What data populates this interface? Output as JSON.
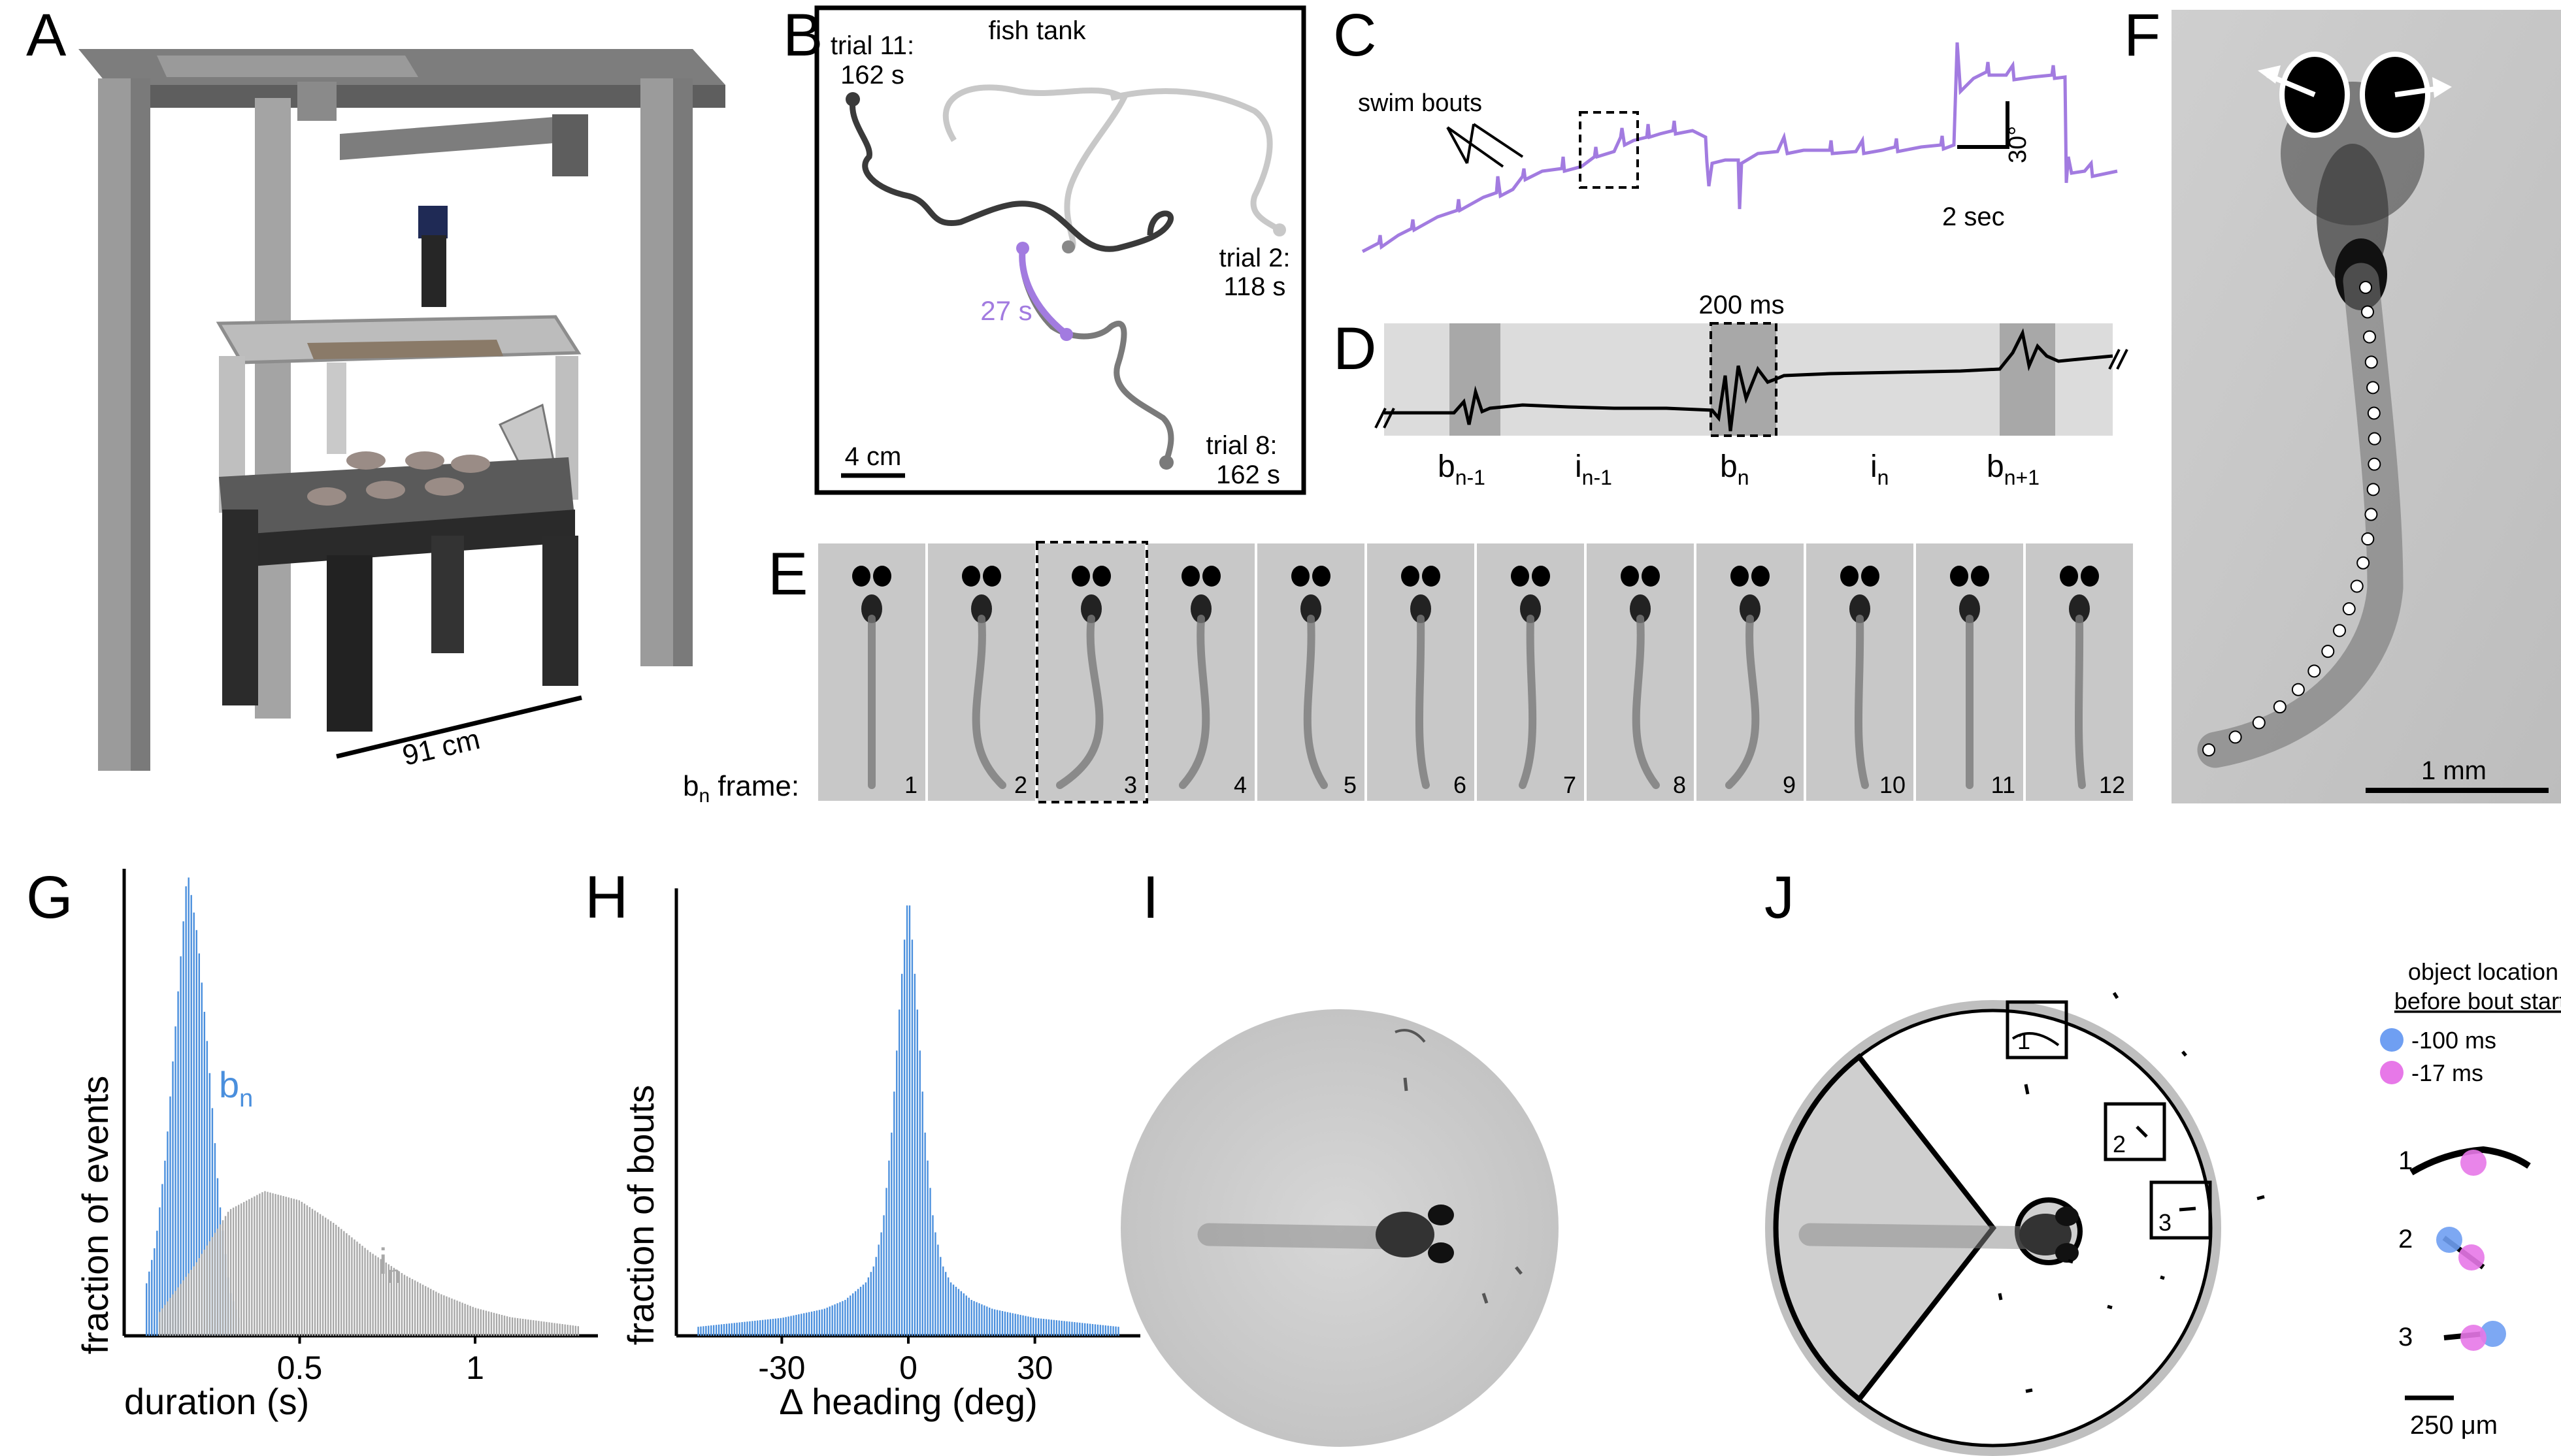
{
  "panels": {
    "A": {
      "letter": "A",
      "scale_label": "91 cm"
    },
    "B": {
      "letter": "B",
      "title": "fish tank",
      "scale_label": "4 cm",
      "trial11_l1": "trial 11:",
      "trial11_l2": "162 s",
      "trial2_l1": "trial 2:",
      "trial2_l2": "118 s",
      "trial8_l1": "trial 8:",
      "trial8_l2": "162 s",
      "highlight_label": "27 s"
    },
    "C": {
      "letter": "C",
      "annotation": "swim bouts",
      "scale_angle": "30°",
      "scale_time": "2 sec"
    },
    "D": {
      "letter": "D",
      "window_label": "200 ms"
    },
    "E": {
      "letter": "E",
      "row_label_b": "b",
      "row_label_sub": "n",
      "row_label_rest": " frame:",
      "frames": [
        "1",
        "2",
        "3",
        "4",
        "5",
        "6",
        "7",
        "8",
        "9",
        "10",
        "11",
        "12"
      ]
    },
    "F": {
      "letter": "F",
      "scale_label": "1 mm"
    },
    "G": {
      "letter": "G"
    },
    "H": {
      "letter": "H"
    },
    "I": {
      "letter": "I"
    },
    "J": {
      "letter": "J",
      "legend_title_l1": "object location",
      "legend_title_l2": "before bout start:",
      "legend": [
        {
          "label": "-100 ms",
          "color": "#6f9ff2"
        },
        {
          "label": "-17 ms",
          "color": "#e778e8"
        }
      ],
      "box_labels": [
        "1",
        "2",
        "3"
      ],
      "scale_label": "250 μm"
    }
  },
  "colors": {
    "purple": "#a27be0",
    "blue": "#4a8fdd",
    "gray_hist": "#a8a8a8",
    "dark_gray": "#454545"
  },
  "chart_data": [
    {
      "type": "bar",
      "title": "",
      "xlabel": "duration (s)",
      "ylabel": "fraction of events",
      "xticks": [
        "0.5",
        "1"
      ],
      "xlim": [
        0,
        1.35
      ],
      "series": [
        {
          "name": "b",
          "name_subscript": "n",
          "color": "#4a8fdd",
          "x": [
            0.06,
            0.09,
            0.12,
            0.15,
            0.18,
            0.21,
            0.24,
            0.27,
            0.3,
            0.33
          ],
          "values": [
            0.1,
            0.2,
            0.4,
            0.7,
            1.0,
            0.85,
            0.6,
            0.3,
            0.1,
            0.03
          ]
        },
        {
          "name": "i",
          "name_subscript": "n",
          "color": "#a8a8a8",
          "x": [
            0.1,
            0.2,
            0.3,
            0.4,
            0.5,
            0.6,
            0.7,
            0.8,
            0.9,
            1.0,
            1.1,
            1.2,
            1.3
          ],
          "values": [
            0.05,
            0.15,
            0.27,
            0.31,
            0.29,
            0.24,
            0.18,
            0.13,
            0.09,
            0.06,
            0.04,
            0.03,
            0.02
          ]
        }
      ]
    },
    {
      "type": "bar",
      "title": "",
      "xlabel": "Δ heading (deg)",
      "ylabel": "fraction of bouts",
      "xticks": [
        "-30",
        "0",
        "30"
      ],
      "xlim": [
        -55,
        55
      ],
      "series": [
        {
          "name": "",
          "color": "#4a8fdd",
          "x": [
            -50,
            -40,
            -30,
            -20,
            -15,
            -10,
            -8,
            -6,
            -4,
            -2,
            0,
            2,
            4,
            6,
            8,
            10,
            15,
            20,
            30,
            40,
            50
          ],
          "values": [
            0.02,
            0.03,
            0.04,
            0.06,
            0.08,
            0.12,
            0.16,
            0.25,
            0.45,
            0.75,
            1.0,
            0.75,
            0.45,
            0.25,
            0.16,
            0.12,
            0.08,
            0.06,
            0.04,
            0.03,
            0.02
          ]
        }
      ]
    }
  ]
}
